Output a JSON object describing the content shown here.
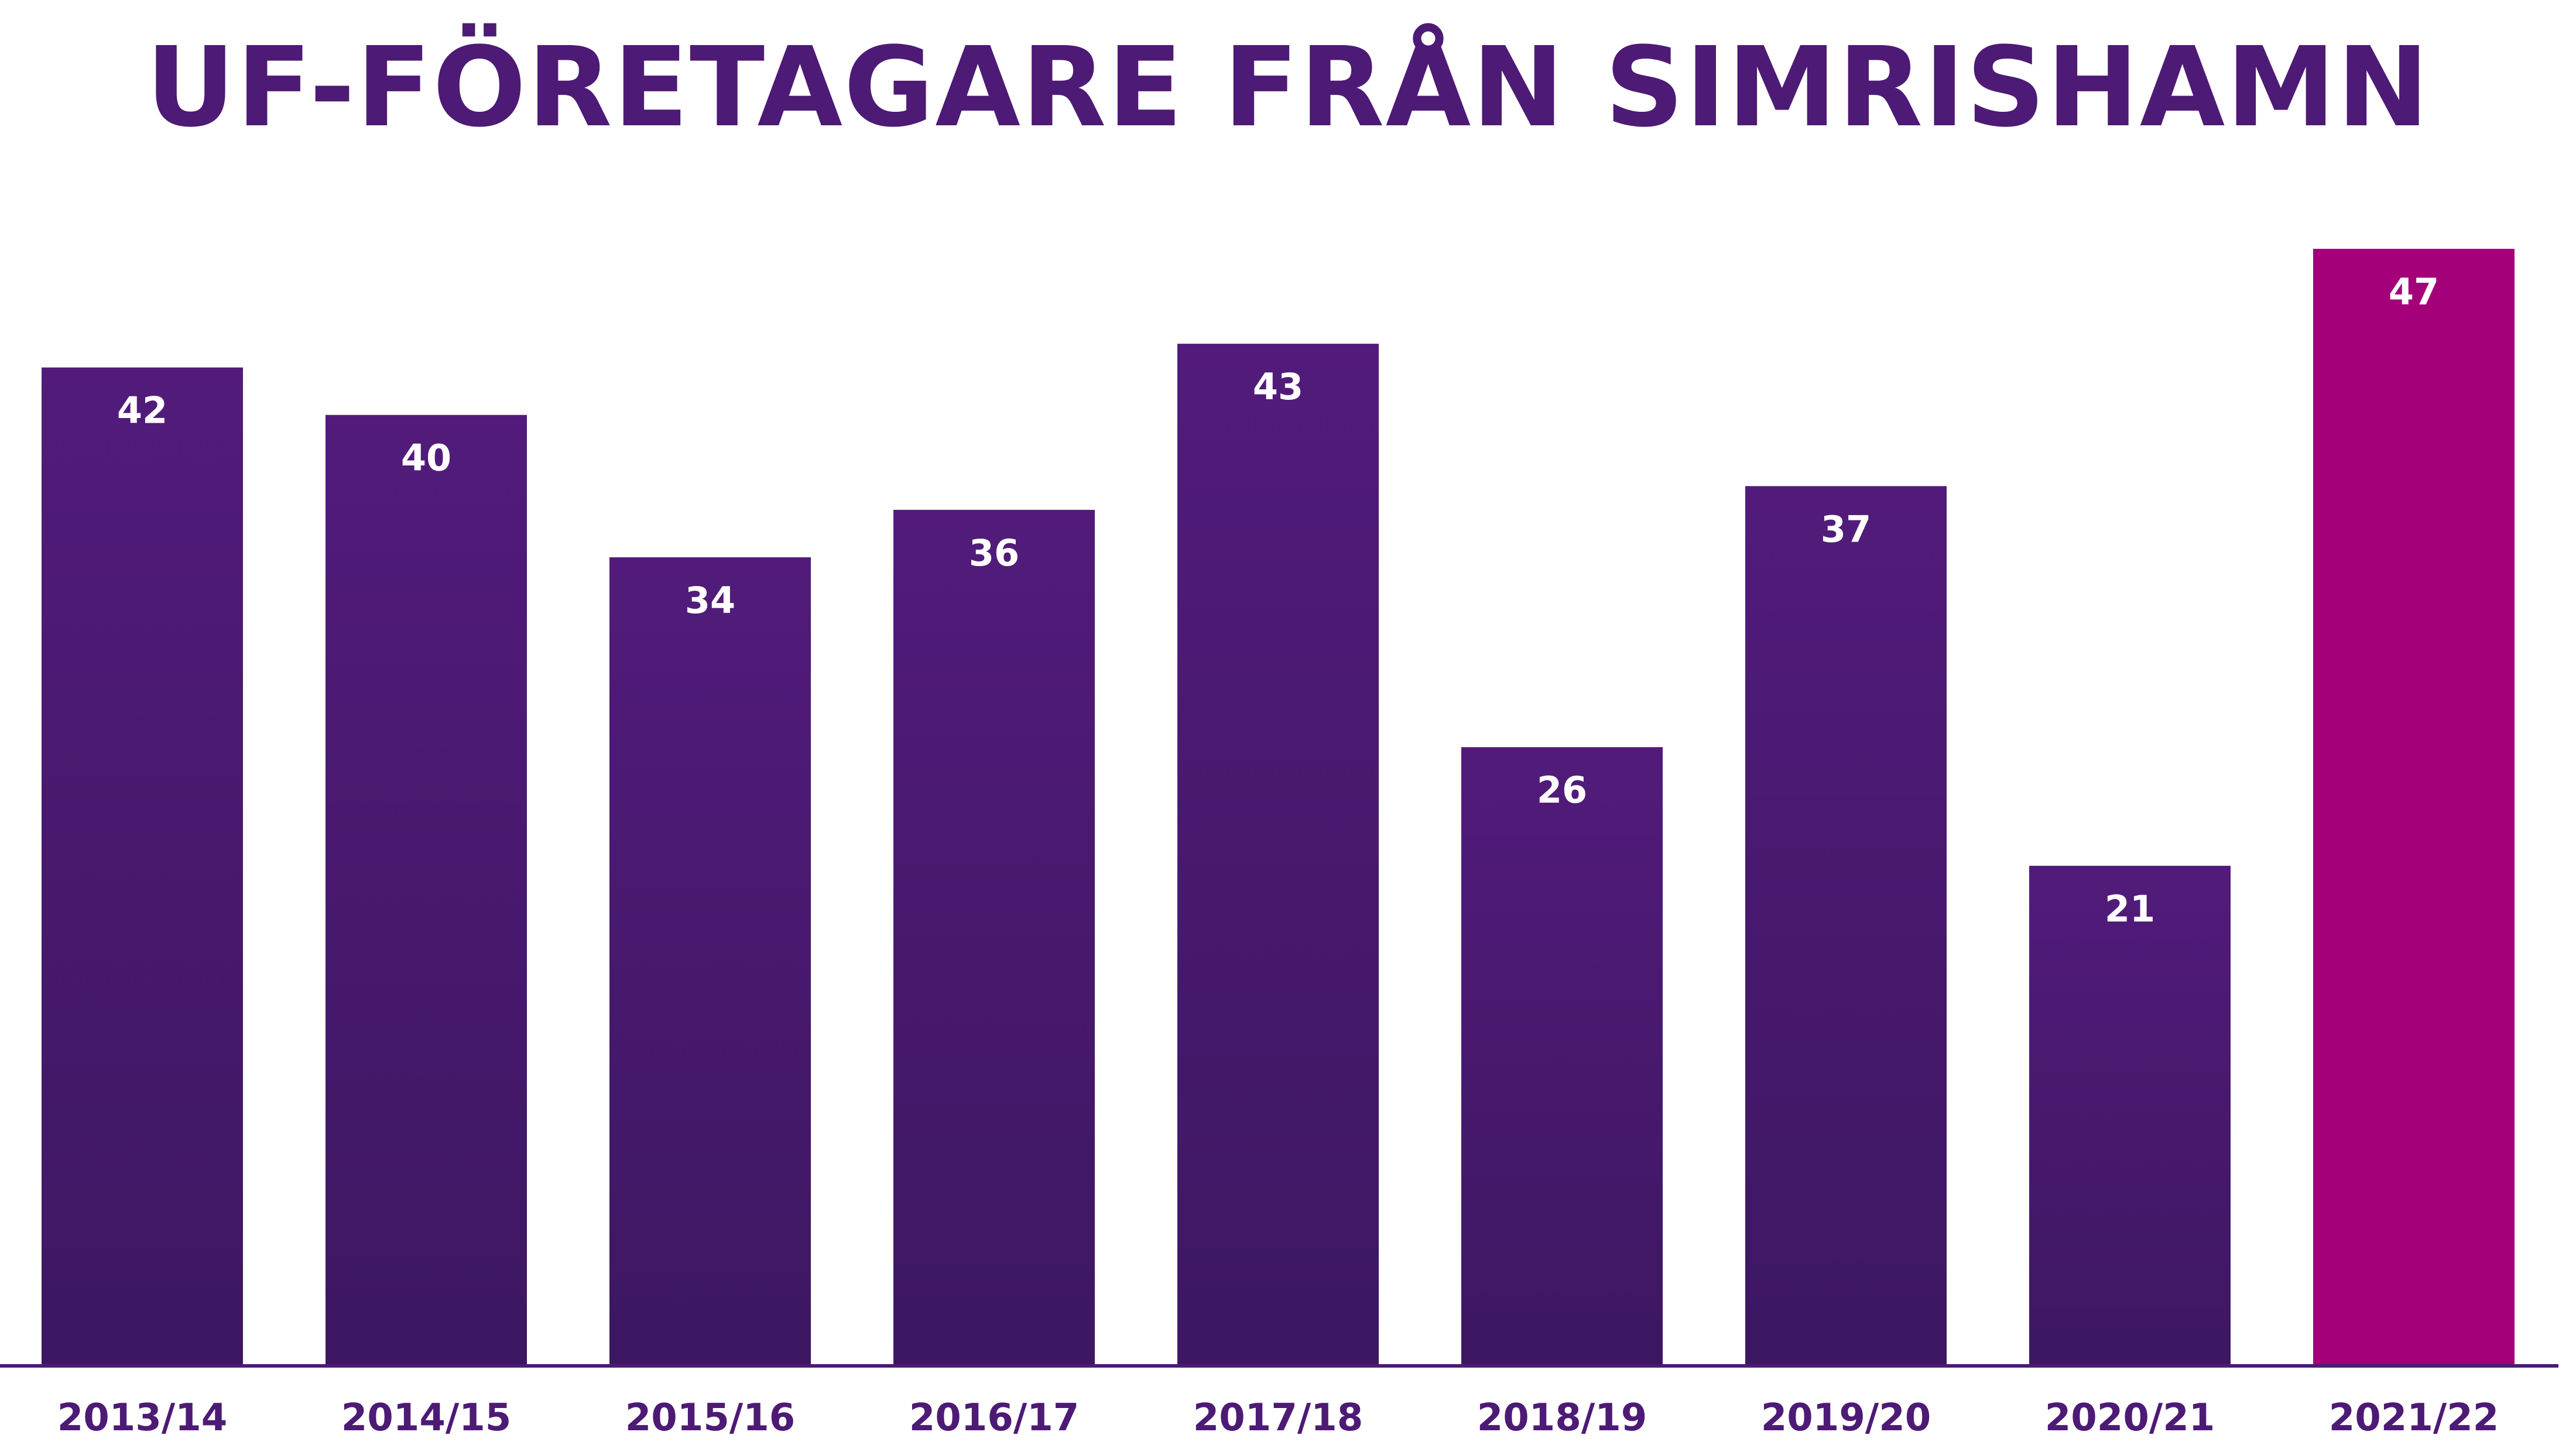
{
  "chart_data": {
    "type": "bar",
    "title": "UF-FÖRETAGARE FRÅN SIMRISHAMN",
    "xlabel": "",
    "ylabel": "",
    "categories": [
      "2013/14",
      "2014/15",
      "2015/16",
      "2016/17",
      "2017/18",
      "2018/19",
      "2019/20",
      "2020/21",
      "2021/22"
    ],
    "values": [
      42,
      40,
      34,
      36,
      43,
      26,
      37,
      21,
      47
    ],
    "ylim": [
      0,
      47
    ],
    "grid": false,
    "legend": "none",
    "data_labels": "inside-top",
    "colors": {
      "default_bar_top": "#521b7b",
      "default_bar_bottom": "#3d1762",
      "highlight_bar": "#a3007a",
      "axis_line": "#4d1a75",
      "tick_label": "#4d1a75",
      "title": "#4d1a75",
      "data_label": "#ffffff"
    },
    "highlight_category": "2021/22"
  }
}
